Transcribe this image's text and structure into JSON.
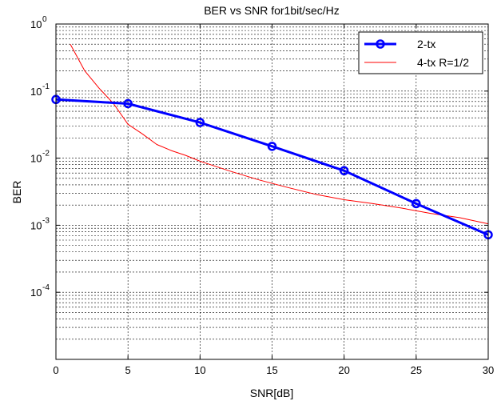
{
  "chart_data": {
    "type": "line",
    "title": "BER vs SNR for1bit/sec/Hz",
    "xlabel": "SNR[dB]",
    "ylabel": "BER",
    "xlim": [
      0,
      30
    ],
    "ylim": [
      1e-05,
      1
    ],
    "yscale": "log",
    "grid": "on",
    "legend_position": "top-right",
    "x_ticks": [
      0,
      5,
      10,
      15,
      20,
      25,
      30
    ],
    "y_ticks": [
      {
        "value": 1,
        "base": "10",
        "exp": "0"
      },
      {
        "value": 0.1,
        "base": "10",
        "exp": "-1"
      },
      {
        "value": 0.01,
        "base": "10",
        "exp": "-2"
      },
      {
        "value": 0.001,
        "base": "10",
        "exp": "-3"
      },
      {
        "value": 0.0001,
        "base": "10",
        "exp": "-4"
      }
    ],
    "series": [
      {
        "name": "2-tx",
        "color": "#0000ff",
        "marker": "circle",
        "x": [
          0,
          5,
          10,
          15,
          20,
          25,
          30
        ],
        "y": [
          0.075,
          0.065,
          0.034,
          0.015,
          0.0065,
          0.0021,
          0.00072
        ]
      },
      {
        "name": "4-tx R=1/2",
        "color": "#ff0000",
        "marker": "none",
        "x": [
          1,
          2,
          3,
          4,
          5,
          6,
          7,
          8,
          9,
          10,
          12,
          14,
          16,
          18,
          20,
          22,
          24,
          26,
          28,
          30
        ],
        "y": [
          0.5,
          0.2,
          0.11,
          0.065,
          0.032,
          0.023,
          0.016,
          0.013,
          0.011,
          0.009,
          0.0065,
          0.0048,
          0.0037,
          0.0029,
          0.0024,
          0.0021,
          0.0018,
          0.0015,
          0.0013,
          0.00105
        ]
      }
    ]
  }
}
